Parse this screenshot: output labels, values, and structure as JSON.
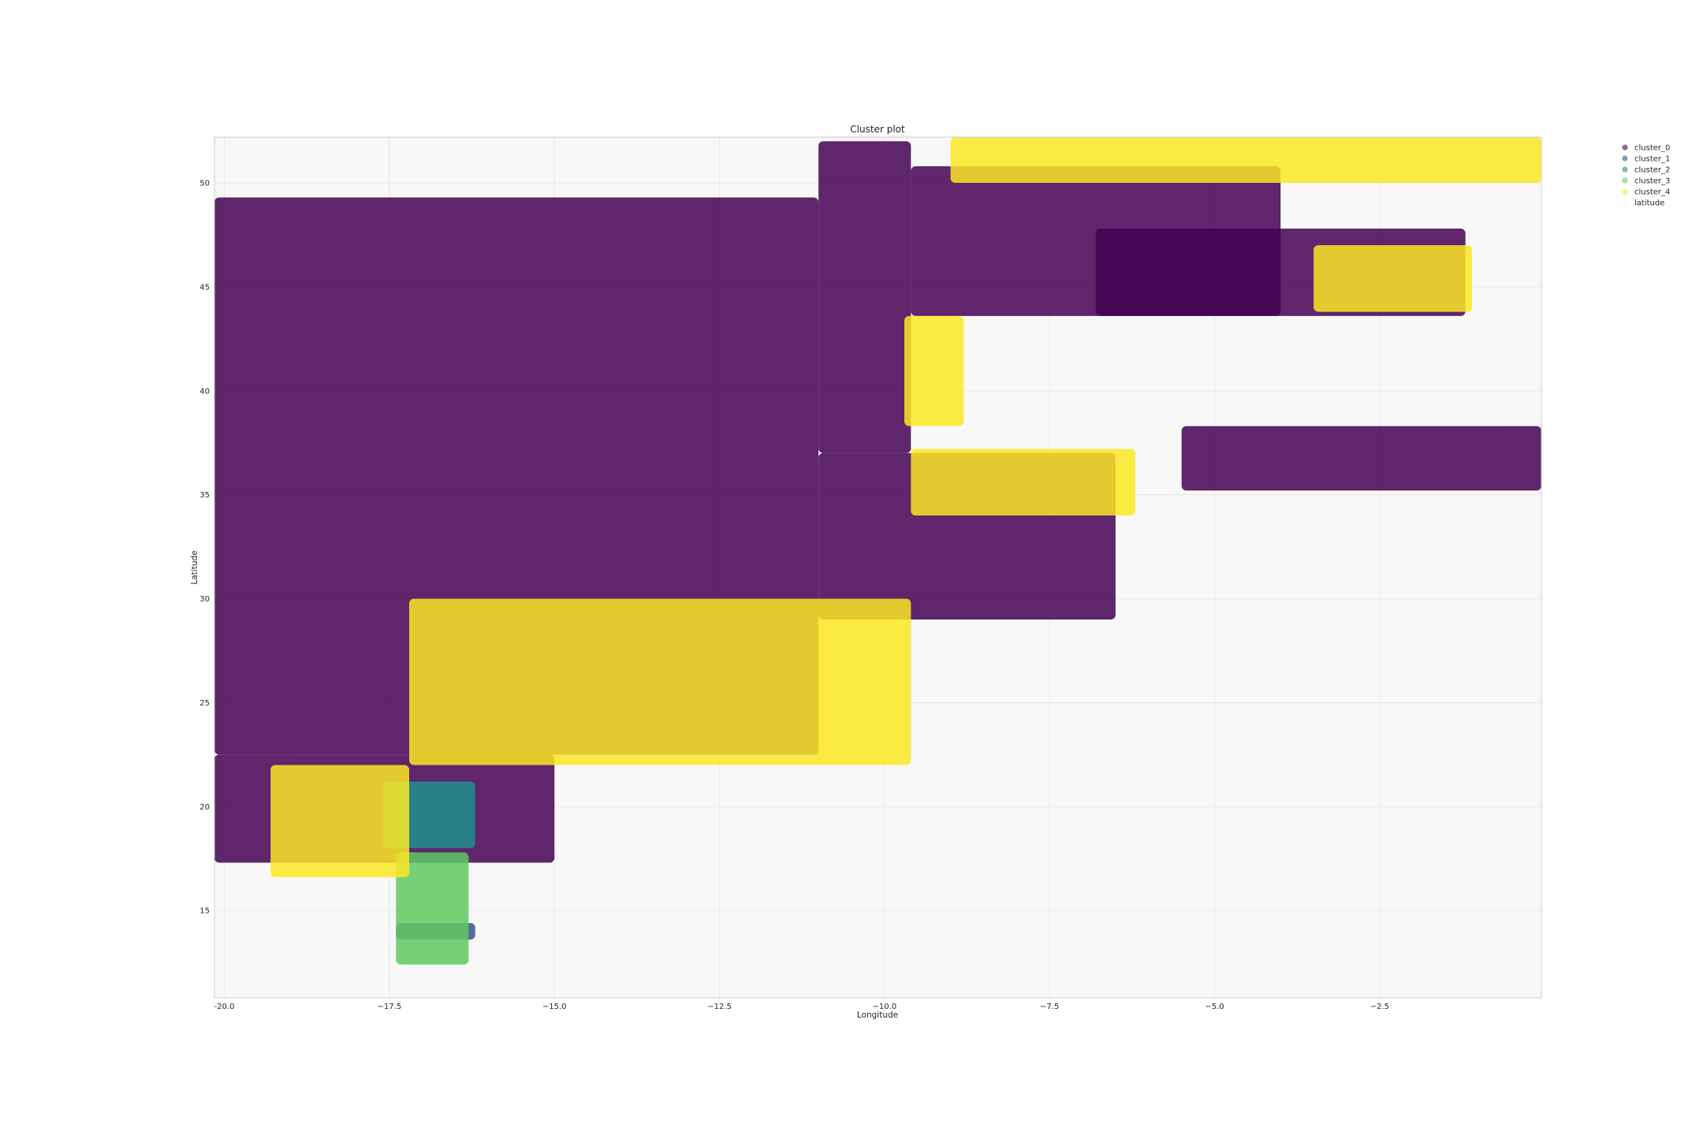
{
  "chart_data": {
    "type": "scatter",
    "title": "Cluster plot",
    "xlabel": "Longitude",
    "ylabel": "Latitude",
    "xlim": [
      -20.15,
      -0.05
    ],
    "ylim": [
      10.8,
      52.2
    ],
    "xticks": [
      -20.0,
      -17.5,
      -15.0,
      -12.5,
      -10.0,
      -7.5,
      -5.0,
      -2.5
    ],
    "xtick_labels": [
      "-20.0",
      "−17.5",
      "−15.0",
      "−12.5",
      "−10.0",
      "−7.5",
      "−5.0",
      "−2.5"
    ],
    "yticks": [
      15,
      20,
      25,
      30,
      35,
      40,
      45,
      50
    ],
    "ytick_labels": [
      "15",
      "20",
      "25",
      "30",
      "35",
      "40",
      "45",
      "50"
    ],
    "grid": true,
    "legend_position": "outside-top-right",
    "series": [
      {
        "name": "cluster_0",
        "color": "#440154",
        "regions": [
          {
            "lon": [
              -20.15,
              -11.0
            ],
            "lat": [
              22.5,
              49.3
            ]
          },
          {
            "lon": [
              -20.15,
              -15.0
            ],
            "lat": [
              17.3,
              22.5
            ]
          },
          {
            "lon": [
              -11.0,
              -9.6
            ],
            "lat": [
              37.0,
              52.0
            ]
          },
          {
            "lon": [
              -9.6,
              -4.0
            ],
            "lat": [
              43.6,
              50.8
            ]
          },
          {
            "lon": [
              -6.8,
              -1.2
            ],
            "lat": [
              43.6,
              47.8
            ]
          },
          {
            "lon": [
              -11.0,
              -6.5
            ],
            "lat": [
              29.0,
              37.0
            ]
          },
          {
            "lon": [
              -5.5,
              -0.05
            ],
            "lat": [
              35.2,
              38.3
            ]
          }
        ]
      },
      {
        "name": "cluster_1",
        "color": "#3b528b",
        "regions": [
          {
            "lon": [
              -17.4,
              -16.2
            ],
            "lat": [
              13.6,
              14.4
            ]
          }
        ]
      },
      {
        "name": "cluster_2",
        "color": "#21918c",
        "regions": [
          {
            "lon": [
              -17.6,
              -16.2
            ],
            "lat": [
              18.0,
              21.2
            ]
          }
        ]
      },
      {
        "name": "cluster_3",
        "color": "#5ec962",
        "regions": [
          {
            "lon": [
              -17.4,
              -16.3
            ],
            "lat": [
              12.4,
              17.8
            ]
          }
        ]
      },
      {
        "name": "cluster_4",
        "color": "#fde725",
        "regions": [
          {
            "lon": [
              -19.3,
              -17.2
            ],
            "lat": [
              16.6,
              22.0
            ]
          },
          {
            "lon": [
              -17.2,
              -9.6
            ],
            "lat": [
              22.0,
              30.0
            ]
          },
          {
            "lon": [
              -9.6,
              -6.2
            ],
            "lat": [
              34.0,
              37.2
            ]
          },
          {
            "lon": [
              -9.7,
              -8.8
            ],
            "lat": [
              38.3,
              43.6
            ]
          },
          {
            "lon": [
              -3.5,
              -1.1
            ],
            "lat": [
              43.8,
              47.0
            ]
          },
          {
            "lon": [
              -9.0,
              -0.05
            ],
            "lat": [
              50.0,
              52.2
            ]
          }
        ]
      }
    ],
    "extra_legend_entries": [
      "latitude"
    ],
    "background_series": {
      "name": "latitude",
      "color": "#f3f3f3"
    }
  }
}
